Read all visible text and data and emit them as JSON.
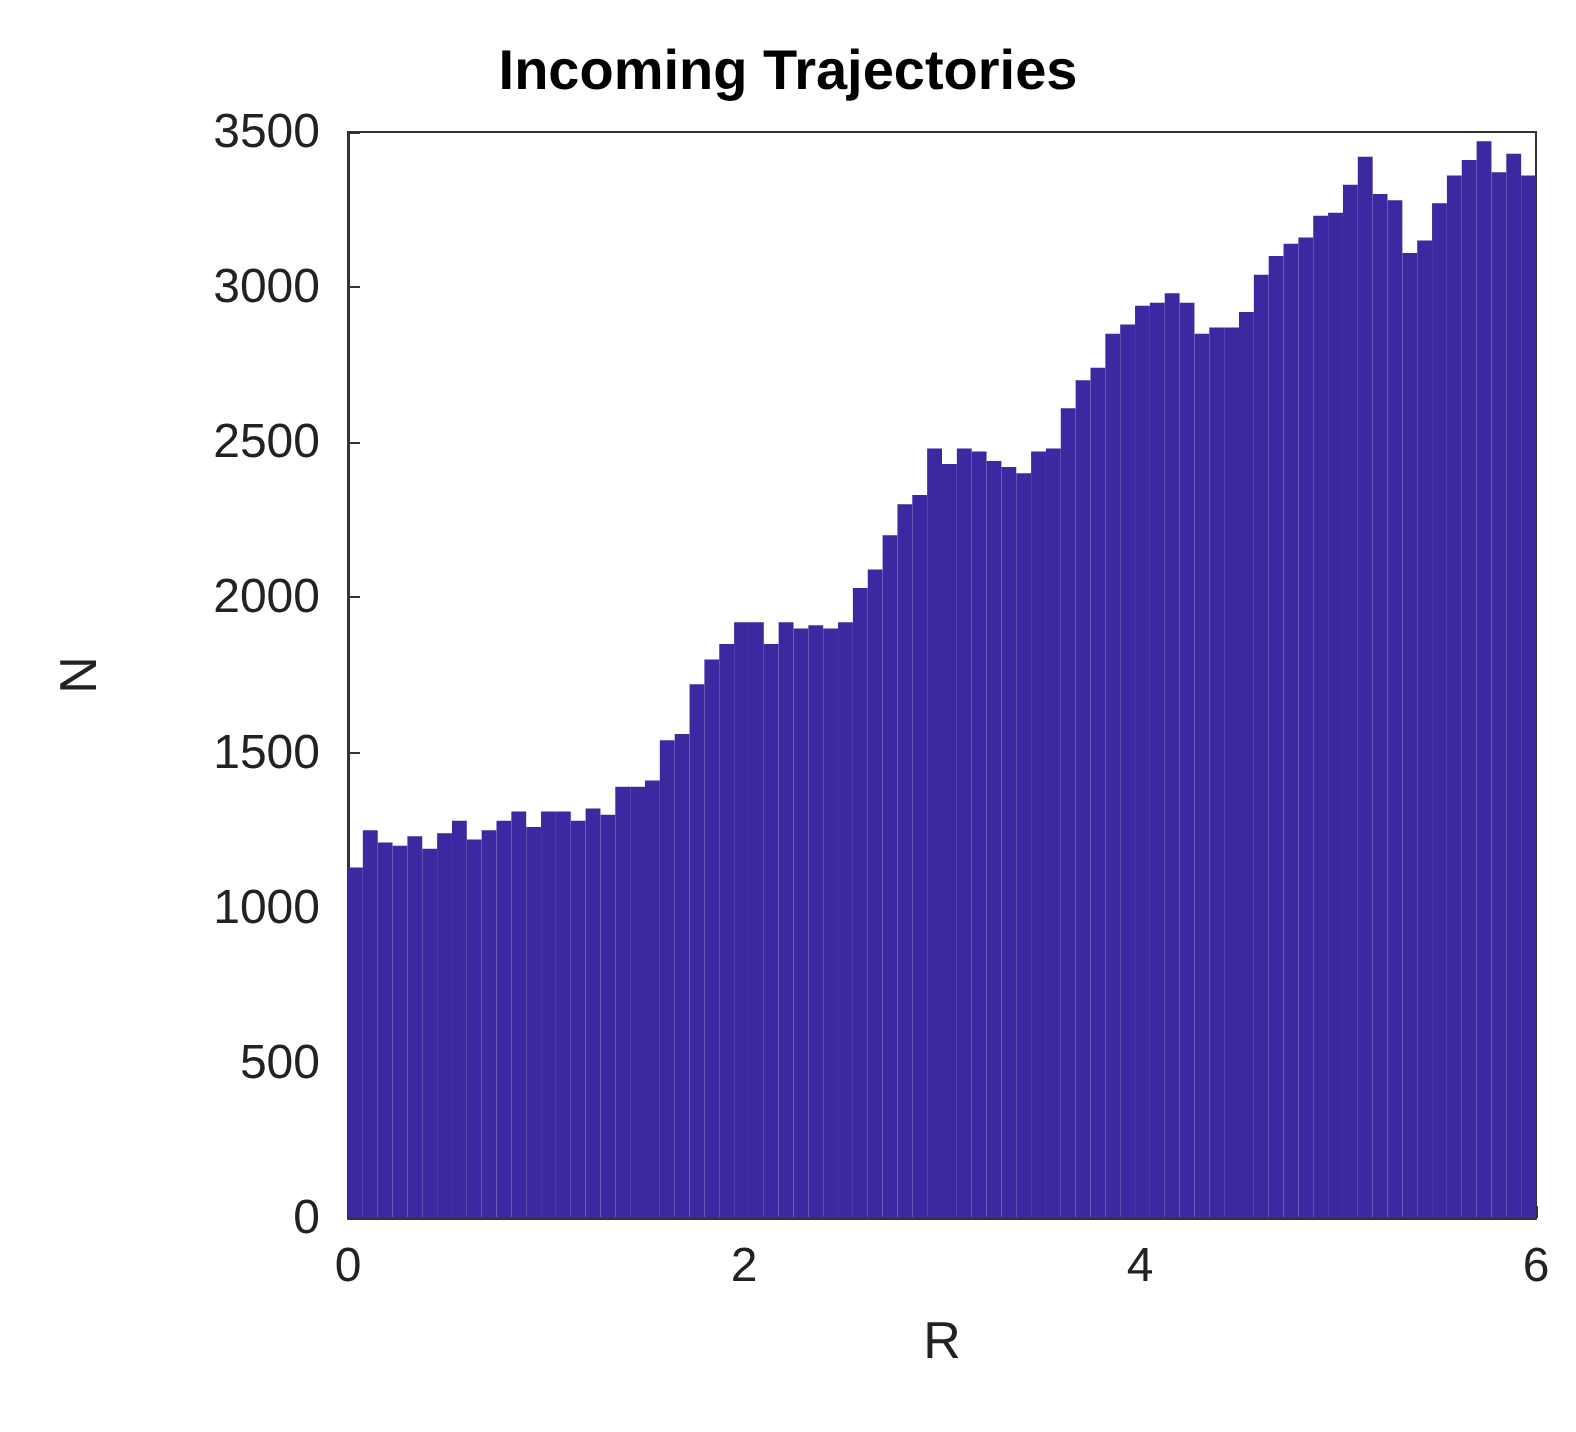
{
  "chart_data": {
    "type": "histogram",
    "title": "Incoming Trajectories",
    "xlabel": "R",
    "ylabel": "N",
    "color": "#3c28a0",
    "bins": [
      0,
      0.075,
      0.15,
      0.225,
      0.3,
      0.375,
      0.45,
      0.525,
      0.6,
      0.675,
      0.75,
      0.825,
      0.9,
      0.975,
      1.05,
      1.125,
      1.2,
      1.275,
      1.35,
      1.425,
      1.5,
      1.575,
      1.65,
      1.725,
      1.8,
      1.875,
      1.95,
      2.025,
      2.1,
      2.175,
      2.25,
      2.325,
      2.4,
      2.475,
      2.55,
      2.625,
      2.7,
      2.775,
      2.85,
      2.925,
      3,
      3.075,
      3.15,
      3.225,
      3.3,
      3.375,
      3.45,
      3.525,
      3.6,
      3.675,
      3.75,
      3.825,
      3.9,
      3.975,
      4.05,
      4.125,
      4.2,
      4.275,
      4.35,
      4.425,
      4.5,
      4.575,
      4.65,
      4.725,
      4.8,
      4.875,
      4.95,
      5.025,
      5.1,
      5.175,
      5.25,
      5.325,
      5.4,
      5.475,
      5.55,
      5.625,
      5.7,
      5.775,
      5.85,
      5.925,
      6
    ],
    "values": [
      1130,
      1250,
      1210,
      1200,
      1230,
      1190,
      1240,
      1280,
      1220,
      1250,
      1280,
      1310,
      1260,
      1310,
      1310,
      1280,
      1320,
      1300,
      1390,
      1390,
      1410,
      1540,
      1560,
      1720,
      1800,
      1850,
      1920,
      1920,
      1850,
      1920,
      1900,
      1910,
      1900,
      1920,
      2030,
      2090,
      2200,
      2300,
      2330,
      2480,
      2430,
      2480,
      2470,
      2440,
      2420,
      2400,
      2470,
      2480,
      2610,
      2700,
      2740,
      2850,
      2880,
      2940,
      2950,
      2980,
      2950,
      2850,
      2870,
      2870,
      2920,
      3040,
      3100,
      3140,
      3160,
      3230,
      3240,
      3330,
      3420,
      3300,
      3280,
      3110,
      3150,
      3270,
      3360,
      3410,
      3470,
      3370,
      3430,
      3360
    ],
    "xlim": [
      0,
      6
    ],
    "xticks": [
      0,
      2,
      4,
      6
    ],
    "ylim": [
      0,
      3500
    ],
    "yticks": [
      0,
      500,
      1000,
      1500,
      2000,
      2500,
      3000,
      3500
    ],
    "grid": false
  }
}
